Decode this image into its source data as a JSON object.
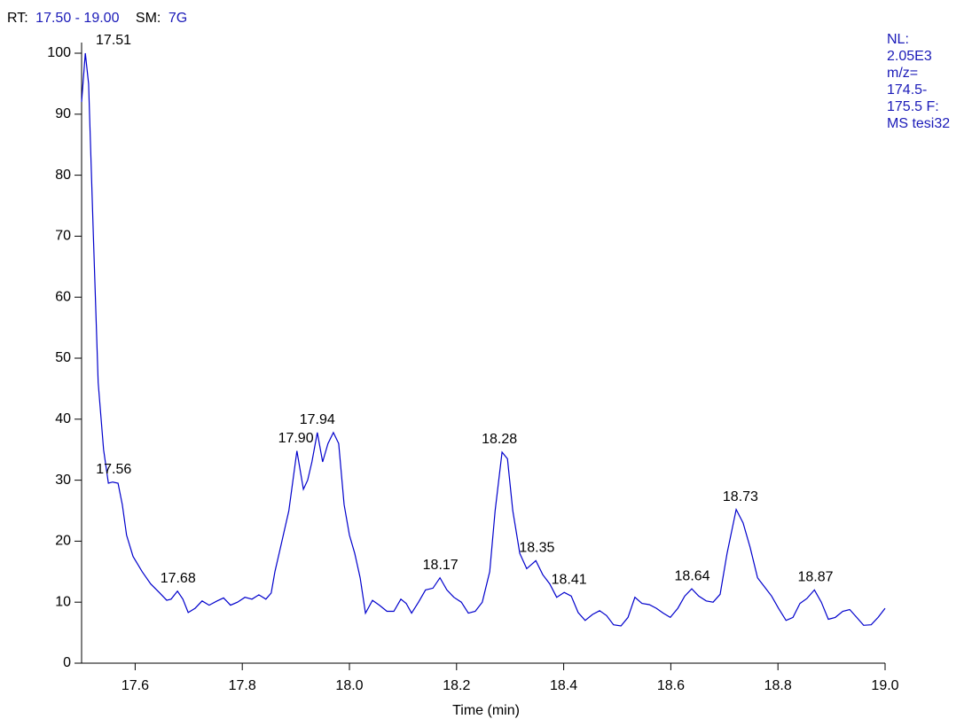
{
  "chart_data": {
    "type": "line",
    "header": {
      "rt_label": "RT:",
      "rt_range": "17.50 - 19.00",
      "sm_label": "SM:",
      "sm_value": "7G"
    },
    "info_lines": [
      "NL:",
      "2.05E3",
      "m/z=",
      "174.5-",
      "175.5 F:",
      "MS tesi32"
    ],
    "x_label": "Time (min)",
    "x": [
      17.5,
      17.507,
      17.513,
      17.522,
      17.531,
      17.541,
      17.55,
      17.558,
      17.568,
      17.576,
      17.584,
      17.596,
      17.613,
      17.629,
      17.646,
      17.659,
      17.667,
      17.679,
      17.689,
      17.699,
      17.712,
      17.725,
      17.738,
      17.753,
      17.765,
      17.778,
      17.791,
      17.805,
      17.818,
      17.831,
      17.844,
      17.854,
      17.861,
      17.874,
      17.887,
      17.902,
      17.914,
      17.922,
      17.93,
      17.94,
      17.95,
      17.96,
      17.97,
      17.98,
      17.99,
      18.0,
      18.01,
      18.02,
      18.03,
      18.043,
      18.056,
      18.07,
      18.083,
      18.096,
      18.106,
      18.116,
      18.129,
      18.142,
      18.156,
      18.169,
      18.182,
      18.195,
      18.209,
      18.222,
      18.235,
      18.248,
      18.262,
      18.272,
      18.285,
      18.295,
      18.305,
      18.318,
      18.331,
      18.348,
      18.361,
      18.374,
      18.387,
      18.401,
      18.414,
      18.427,
      18.44,
      18.454,
      18.467,
      18.48,
      18.493,
      18.507,
      18.52,
      18.533,
      18.546,
      18.56,
      18.573,
      18.586,
      18.599,
      18.613,
      18.626,
      18.639,
      18.652,
      18.666,
      18.679,
      18.692,
      18.705,
      18.722,
      18.735,
      18.748,
      18.762,
      18.775,
      18.788,
      18.801,
      18.815,
      18.828,
      18.841,
      18.854,
      18.868,
      18.881,
      18.894,
      18.907,
      18.921,
      18.934,
      18.947,
      18.96,
      18.974,
      18.987,
      19.0
    ],
    "series": [
      {
        "color": "#0000cc",
        "values": [
          92,
          100,
          95,
          70,
          46,
          35,
          29.5,
          29.7,
          29.5,
          26,
          21,
          17.5,
          15,
          13,
          11.5,
          10.3,
          10.5,
          11.8,
          10.5,
          8.3,
          9,
          10.2,
          9.5,
          10.2,
          10.7,
          9.5,
          10,
          10.8,
          10.5,
          11.2,
          10.5,
          11.5,
          15,
          20,
          25,
          34.8,
          28.5,
          30,
          33,
          37.8,
          33,
          36,
          37.8,
          36,
          26,
          21,
          18,
          14,
          8.2,
          10.3,
          9.5,
          8.5,
          8.5,
          10.5,
          9.8,
          8.2,
          10,
          12,
          12.3,
          14,
          12,
          10.8,
          10,
          8.2,
          8.5,
          10,
          15,
          25,
          34.6,
          33.5,
          25,
          18,
          15.5,
          16.8,
          14.5,
          13,
          10.8,
          11.6,
          11,
          8.3,
          7,
          8,
          8.6,
          7.8,
          6.3,
          6.1,
          7.5,
          10.8,
          9.8,
          9.6,
          9,
          8.2,
          7.5,
          9,
          11,
          12.2,
          11,
          10.2,
          10,
          11.3,
          18,
          25.2,
          23,
          19,
          14,
          12.5,
          11,
          9,
          7,
          7.5,
          9.8,
          10.6,
          12,
          10,
          7.2,
          7.5,
          8.5,
          8.8,
          7.5,
          6.2,
          6.3,
          7.5,
          9
        ]
      }
    ],
    "peak_labels": [
      {
        "value": 17.51,
        "label": "17.51"
      },
      {
        "value": 17.56,
        "label": "17.56"
      },
      {
        "value": 17.68,
        "label": "17.68"
      },
      {
        "value": 17.9,
        "label": "17.90"
      },
      {
        "value": 17.94,
        "label": "17.94"
      },
      {
        "value": 18.17,
        "label": "18.17"
      },
      {
        "value": 18.28,
        "label": "18.28"
      },
      {
        "value": 18.35,
        "label": "18.35"
      },
      {
        "value": 18.41,
        "label": "18.41"
      },
      {
        "value": 18.64,
        "label": "18.64"
      },
      {
        "value": 18.73,
        "label": "18.73"
      },
      {
        "value": 18.87,
        "label": "18.87"
      }
    ],
    "xlim": [
      17.5,
      19.0
    ],
    "ylim": [
      0,
      100
    ],
    "xticks": [
      17.6,
      17.8,
      {
        "value": 18.0,
        "label": "18.0"
      },
      18.2,
      18.4,
      18.6,
      18.8,
      {
        "value": 19.0,
        "label": "19.0"
      }
    ],
    "yticks": [
      0,
      10,
      20,
      30,
      40,
      50,
      60,
      70,
      80,
      90,
      100
    ]
  }
}
